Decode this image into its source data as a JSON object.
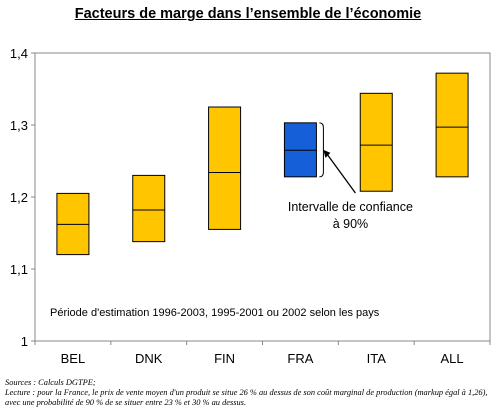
{
  "chart_data": {
    "type": "box",
    "title": "Facteurs de marge dans l’ensemble de l’économie",
    "categories": [
      "BEL",
      "DNK",
      "FIN",
      "FRA",
      "ITA",
      "ALL"
    ],
    "series": [
      {
        "low": [
          1.12,
          1.138,
          1.155,
          1.228,
          1.208,
          1.228
        ],
        "mid": [
          1.162,
          1.182,
          1.234,
          1.265,
          1.272,
          1.297
        ],
        "high": [
          1.205,
          1.23,
          1.325,
          1.303,
          1.344,
          1.372
        ]
      }
    ],
    "highlight_index": 3,
    "ylim": [
      1.0,
      1.4
    ],
    "yticks": [
      "1",
      "1,1",
      "1,2",
      "1,3",
      "1,4"
    ],
    "grid": false,
    "annotation": {
      "line1": "Intervalle de confiance",
      "line2": "à 90%"
    },
    "note": "Période d'estimation 1996-2003, 1995-2001 ou 2002 selon les pays",
    "colors": {
      "box": "#FFC600",
      "highlight": "#1560D8",
      "stroke": "#000000",
      "frame": "#888888"
    }
  },
  "footer": {
    "sources": "Sources : Calculs DGTPE;",
    "lecture": "Lecture : pour la France, le prix de vente moyen d'un produit se situe 26 % au dessus de son coût marginal de production (markup égal à 1,26), avec une probabilité de 90 % de se situer entre 23 % et 30 % au dessus."
  }
}
